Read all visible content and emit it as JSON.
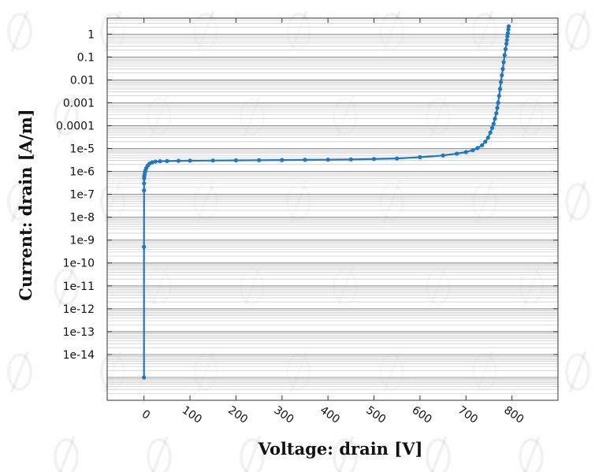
{
  "chart_data": {
    "type": "line",
    "xlabel": "Voltage: drain [V]",
    "ylabel": "Current: drain [A/m]",
    "xlim": [
      -80,
      900
    ],
    "ylim": [
      1e-16,
      5
    ],
    "yscale": "log",
    "grid": true,
    "legend": "none",
    "xticks": [
      "0",
      "100",
      "200",
      "300",
      "400",
      "500",
      "600",
      "700",
      "800"
    ],
    "yticks": [
      "1",
      "0.1",
      "0.01",
      "0.001",
      "0.0001",
      "1e-5",
      "1e-6",
      "1e-7",
      "1e-8",
      "1e-9",
      "1e-10",
      "1e-11",
      "1e-12",
      "1e-13",
      "1e-14"
    ],
    "series": [
      {
        "color": "#1f77c4",
        "x": [
          0,
          0,
          0.1,
          0.2,
          0.3,
          0.5,
          1,
          2,
          3,
          5,
          8,
          12,
          18,
          25,
          35,
          50,
          75,
          100,
          150,
          200,
          250,
          300,
          350,
          400,
          450,
          500,
          550,
          600,
          650,
          680,
          700,
          715,
          725,
          735,
          742,
          748,
          753,
          757,
          760,
          763,
          766,
          768,
          770,
          772,
          774,
          776,
          778,
          780,
          782,
          784,
          786,
          788,
          789,
          790,
          791,
          792,
          793
        ],
        "y": [
          1e-15,
          5e-10,
          1.5e-07,
          3e-07,
          5e-07,
          6e-07,
          7e-07,
          9e-07,
          1.1e-06,
          1.4e-06,
          1.8e-06,
          2.2e-06,
          2.5e-06,
          2.7e-06,
          2.8e-06,
          2.85e-06,
          2.9e-06,
          2.95e-06,
          3e-06,
          3.05e-06,
          3.1e-06,
          3.15e-06,
          3.2e-06,
          3.25e-06,
          3.35e-06,
          3.5e-06,
          3.7e-06,
          4.2e-06,
          5e-06,
          6e-06,
          7e-06,
          8.5e-06,
          1.05e-05,
          1.4e-05,
          2e-05,
          3e-05,
          5e-05,
          8e-05,
          0.00012,
          0.0002,
          0.00035,
          0.0006,
          0.001,
          0.002,
          0.004,
          0.008,
          0.016,
          0.03,
          0.06,
          0.12,
          0.22,
          0.38,
          0.55,
          0.8,
          1.1,
          1.6,
          2.2
        ]
      }
    ]
  }
}
